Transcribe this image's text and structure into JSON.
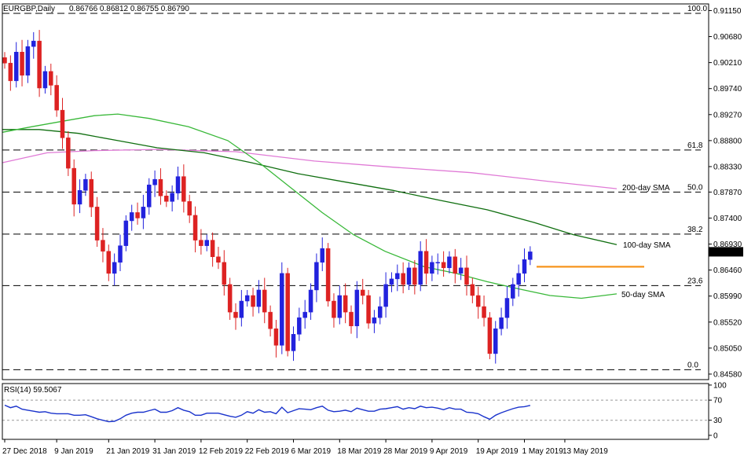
{
  "header": {
    "symbol_label": "EURGBP,Daily",
    "ohlc": "0.86766 0.86812 0.86755 0.86790"
  },
  "rsi_header": "RSI(14) 59.5067",
  "chart_data": {
    "type": "candlestick",
    "price_axis": {
      "ticks": [
        "0.91150",
        "0.90680",
        "0.90210",
        "0.89740",
        "0.89270",
        "0.88800",
        "0.88330",
        "0.87870",
        "0.87400",
        "0.86930",
        "0.86460",
        "0.85990",
        "0.85520",
        "0.85050",
        "0.84580"
      ],
      "ylim": [
        0.8458,
        0.913
      ]
    },
    "last_price_label": "0.86790",
    "rsi_axis": {
      "ticks": [
        "100",
        "70",
        "30",
        "0"
      ],
      "ylim": [
        0,
        100
      ]
    },
    "x_tick_labels": [
      "27 Dec 2018",
      "9 Jan 2019",
      "21 Jan 2019",
      "31 Jan 2019",
      "12 Feb 2019",
      "22 Feb 2019",
      "6 Mar 2019",
      "18 Mar 2019",
      "28 Mar 2019",
      "9 Apr 2019",
      "19 Apr 2019",
      "1 May 2019",
      "13 May 2019"
    ],
    "fib_levels": [
      {
        "label": "100.0",
        "price": 0.911
      },
      {
        "label": "61.8",
        "price": 0.8863
      },
      {
        "label": "50.0",
        "price": 0.8787
      },
      {
        "label": "38.2",
        "price": 0.8711
      },
      {
        "label": "23.6",
        "price": 0.8618
      },
      {
        "label": "0.0",
        "price": 0.8466
      }
    ],
    "sma_labels": {
      "sma200": "200-day SMA",
      "sma100": "100-day SMA",
      "sma50": "50-day SMA"
    },
    "colors": {
      "up": "#2222dd",
      "down": "#dd2222",
      "sma200": "#e07ad6",
      "sma100": "#0f6e0f",
      "sma50": "#39b839",
      "resistance": "#f7941d",
      "rsi": "#1a33cc"
    },
    "closes": [
      0.902,
      0.8988,
      0.904,
      0.8998,
      0.905,
      0.906,
      0.8975,
      0.9005,
      0.898,
      0.8935,
      0.8885,
      0.883,
      0.8765,
      0.879,
      0.881,
      0.876,
      0.87,
      0.868,
      0.864,
      0.866,
      0.869,
      0.8735,
      0.875,
      0.874,
      0.876,
      0.88,
      0.881,
      0.878,
      0.877,
      0.8785,
      0.8815,
      0.877,
      0.8745,
      0.87,
      0.869,
      0.87,
      0.867,
      0.866,
      0.862,
      0.857,
      0.856,
      0.859,
      0.86,
      0.858,
      0.861,
      0.857,
      0.854,
      0.851,
      0.864,
      0.85,
      0.853,
      0.856,
      0.857,
      0.861,
      0.866,
      0.8685,
      0.859,
      0.856,
      0.86,
      0.857,
      0.8545,
      0.861,
      0.86,
      0.855,
      0.856,
      0.858,
      0.862,
      0.863,
      0.864,
      0.862,
      0.865,
      0.862,
      0.868,
      0.864,
      0.866,
      0.866,
      0.865,
      0.867,
      0.864,
      0.865,
      0.862,
      0.86,
      0.858,
      0.856,
      0.8495,
      0.854,
      0.856,
      0.8595,
      0.862,
      0.864,
      0.8665,
      0.8679
    ],
    "rsi_values": [
      60,
      55,
      58,
      52,
      50,
      48,
      46,
      47,
      44,
      43,
      43,
      43,
      40,
      40,
      41,
      37,
      33,
      30,
      27,
      28,
      33,
      40,
      44,
      46,
      46,
      49,
      52,
      46,
      46,
      49,
      55,
      50,
      47,
      40,
      40,
      44,
      44,
      44,
      41,
      38,
      36,
      40,
      47,
      44,
      51,
      46,
      47,
      43,
      56,
      45,
      49,
      53,
      52,
      51,
      55,
      58,
      50,
      47,
      48,
      50,
      47,
      54,
      51,
      48,
      48,
      52,
      53,
      55,
      57,
      52,
      55,
      53,
      58,
      55,
      56,
      54,
      51,
      55,
      52,
      52,
      46,
      45,
      43,
      37,
      32,
      40,
      45,
      49,
      53,
      56,
      57,
      59.5
    ]
  }
}
